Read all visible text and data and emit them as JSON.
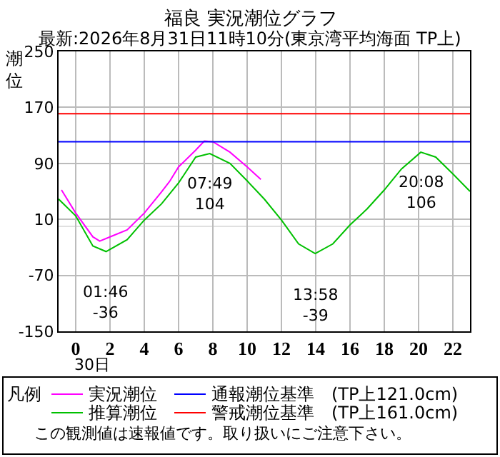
{
  "chart_data": {
    "type": "line",
    "title": "福良 実況潮位グラフ",
    "subtitle": "最新:2026年8月31日11時10分(東京湾平均海面 TP上)",
    "ylabel": "潮位",
    "legend_title": "凡例",
    "legend": "bottom",
    "grid": true,
    "marker": "none",
    "line_style": "solid",
    "xlim": [
      -1,
      23
    ],
    "xticks": [
      0,
      2,
      4,
      6,
      8,
      10,
      12,
      14,
      16,
      18,
      20,
      22
    ],
    "ylim": [
      -150,
      250
    ],
    "yticks": [
      -150,
      -70,
      10,
      90,
      170,
      250
    ],
    "series": [
      {
        "name": "実況潮位",
        "color": "#ff00ff",
        "x": [
          -0.83,
          0,
          1,
          1.4,
          2,
          3,
          4,
          5,
          5.5,
          6,
          7,
          7.5,
          8,
          9,
          10,
          10.8
        ],
        "values": [
          52,
          19,
          -15,
          -21,
          -15,
          -5,
          19,
          49,
          65,
          85,
          109,
          122,
          121,
          106,
          85,
          67
        ]
      },
      {
        "name": "推算潮位",
        "color": "#00c000",
        "x": [
          -1,
          0,
          1,
          1.77,
          3,
          4,
          5,
          6,
          7,
          7.82,
          9,
          10,
          11,
          12,
          13,
          13.97,
          15,
          16,
          17,
          18,
          19,
          20.13,
          21,
          22,
          23
        ],
        "values": [
          39,
          15,
          -28,
          -36,
          -19,
          9,
          32,
          62,
          99,
          104,
          90,
          65,
          39,
          9,
          -25,
          -39,
          -25,
          2,
          25,
          52,
          82,
          106,
          99,
          75,
          50
        ]
      }
    ],
    "ref_lines": [
      {
        "axis": "y",
        "value": 121,
        "label": "通報潮位基準　(TP上121.0cm)",
        "color": "#0000ff"
      },
      {
        "axis": "y",
        "value": 161,
        "label": "警戒潮位基準　(TP上161.0cm)",
        "color": "#ff0000"
      },
      {
        "axis": "y",
        "value": 0,
        "color": "#e0e0e0"
      }
    ],
    "annotations": [
      {
        "text": "01:46\n-36",
        "x": 1.77,
        "y": -36
      },
      {
        "text": "07:49\n104",
        "x": 7.82,
        "y": 104
      },
      {
        "text": "13:58\n-39",
        "x": 13.97,
        "y": -39
      },
      {
        "text": "20:08\n106",
        "x": 20.13,
        "y": 106
      },
      "30日",
      "この観測値は速報値です。取り扱いにご注意下さい。"
    ]
  }
}
